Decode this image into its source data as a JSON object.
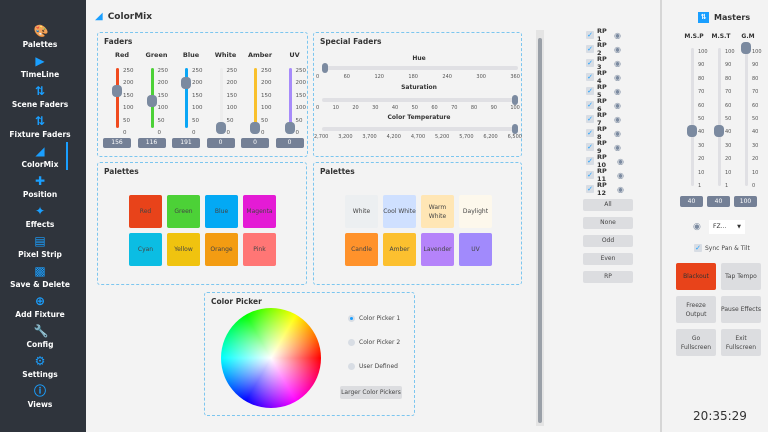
{
  "sidebar": {
    "items": [
      {
        "label": "Palettes",
        "icon": "palette-icon"
      },
      {
        "label": "TimeLine",
        "icon": "play-icon"
      },
      {
        "label": "Scene Faders",
        "icon": "sliders-icon"
      },
      {
        "label": "Fixture Faders",
        "icon": "sliders-icon"
      },
      {
        "label": "ColorMix",
        "icon": "paint-bucket-icon"
      },
      {
        "label": "Position",
        "icon": "move-icon"
      },
      {
        "label": "Effects",
        "icon": "magic-wand-icon"
      },
      {
        "label": "Pixel Strip",
        "icon": "pixel-strip-icon"
      },
      {
        "label": "Save & Delete",
        "icon": "save-icon"
      },
      {
        "label": "Add Fixture",
        "icon": "plus-circle-icon"
      },
      {
        "label": "Config",
        "icon": "wrench-icon"
      },
      {
        "label": "Settings",
        "icon": "gear-icon"
      },
      {
        "label": "Views",
        "icon": "info-icon"
      }
    ],
    "active": "ColorMix"
  },
  "header": {
    "title": "ColorMix"
  },
  "faders": {
    "title": "Faders",
    "ticks": "250\n200\n150\n100\n50\n0",
    "channels": [
      {
        "name": "Red",
        "value": "156",
        "color": "#f04a1e"
      },
      {
        "name": "Green",
        "value": "116",
        "color": "#4cd137"
      },
      {
        "name": "Blue",
        "value": "191",
        "color": "#0aa6f5"
      },
      {
        "name": "White",
        "value": "0",
        "color": "#ededed"
      },
      {
        "name": "Amber",
        "value": "0",
        "color": "#f9c02c"
      },
      {
        "name": "UV",
        "value": "0",
        "color": "#a78bfa"
      }
    ]
  },
  "special": {
    "title": "Special Faders",
    "hue": {
      "label": "Hue",
      "ticks": [
        "0",
        "60",
        "120",
        "180",
        "240",
        "300",
        "360"
      ],
      "value": 0,
      "max": 360
    },
    "saturation": {
      "label": "Saturation",
      "ticks": [
        "0",
        "10",
        "20",
        "30",
        "40",
        "50",
        "60",
        "70",
        "80",
        "90",
        "100"
      ],
      "value": 100,
      "max": 100
    },
    "temperature": {
      "label": "Color Temperature",
      "ticks": [
        "2,700",
        "3,200",
        "3,700",
        "4,200",
        "4,700",
        "5,200",
        "5,700",
        "6,200",
        "6,500"
      ],
      "value": 6500,
      "min": 2700,
      "max": 6500
    }
  },
  "palettes_left": {
    "title": "Palettes",
    "items": [
      {
        "label": "Red",
        "color": "#e8431a"
      },
      {
        "label": "Green",
        "color": "#4cd137"
      },
      {
        "label": "Blue",
        "color": "#03a9f4"
      },
      {
        "label": "Magenta",
        "color": "#e41bd5"
      },
      {
        "label": "Cyan",
        "color": "#0bbde3"
      },
      {
        "label": "Yellow",
        "color": "#f0c30f"
      },
      {
        "label": "Orange",
        "color": "#f39c12"
      },
      {
        "label": "Pink",
        "color": "#ff7675"
      }
    ]
  },
  "palettes_right": {
    "title": "Palettes",
    "items": [
      {
        "label": "White",
        "color": "#eceff1"
      },
      {
        "label": "Cool White",
        "color": "#cfe0ff"
      },
      {
        "label": "Warm White",
        "color": "#ffe6b5"
      },
      {
        "label": "Daylight",
        "color": "#fdf8ec"
      },
      {
        "label": "Candle",
        "color": "#ff922b"
      },
      {
        "label": "Amber",
        "color": "#fcc02f"
      },
      {
        "label": "Lavender",
        "color": "#b583fa"
      },
      {
        "label": "UV",
        "color": "#a18afc"
      }
    ]
  },
  "color_picker": {
    "title": "Color Picker",
    "options": [
      "Color Picker 1",
      "Color Picker 2",
      "User Defined"
    ],
    "selected": "Color Picker 1",
    "larger_button": "Larger Color Pickers"
  },
  "rp": {
    "items": [
      "RP 1",
      "RP 2",
      "RP 3",
      "RP 4",
      "RP 5",
      "RP 6",
      "RP 7",
      "RP 8",
      "RP 9",
      "RP 10",
      "RP 11",
      "RP 12"
    ],
    "buttons": [
      "All",
      "None",
      "Odd",
      "Even",
      "RP"
    ]
  },
  "masters": {
    "title": "Masters",
    "faders": [
      {
        "name": "M.S.P",
        "value": "40",
        "ticks": "100\n90\n80\n70\n60\n50\n40\n30\n20\n10\n1"
      },
      {
        "name": "M.S.T",
        "value": "40",
        "ticks": "100\n90\n80\n70\n60\n50\n40\n30\n20\n10\n1"
      },
      {
        "name": "G.M",
        "value": "100",
        "ticks": "100\n90\n80\n70\n60\n50\n40\n30\n20\n10\n0"
      }
    ],
    "dropdown": "FZ...",
    "sync_label": "Sync Pan & Tilt",
    "sync_checked": true,
    "buttons": [
      "Blackout",
      "Tap Tempo",
      "Freeze Output",
      "Pause Effects",
      "Go Fullscreen",
      "Exit Fullscreen"
    ],
    "blackout_color": "#e8431a"
  },
  "clock": "20:35:29"
}
